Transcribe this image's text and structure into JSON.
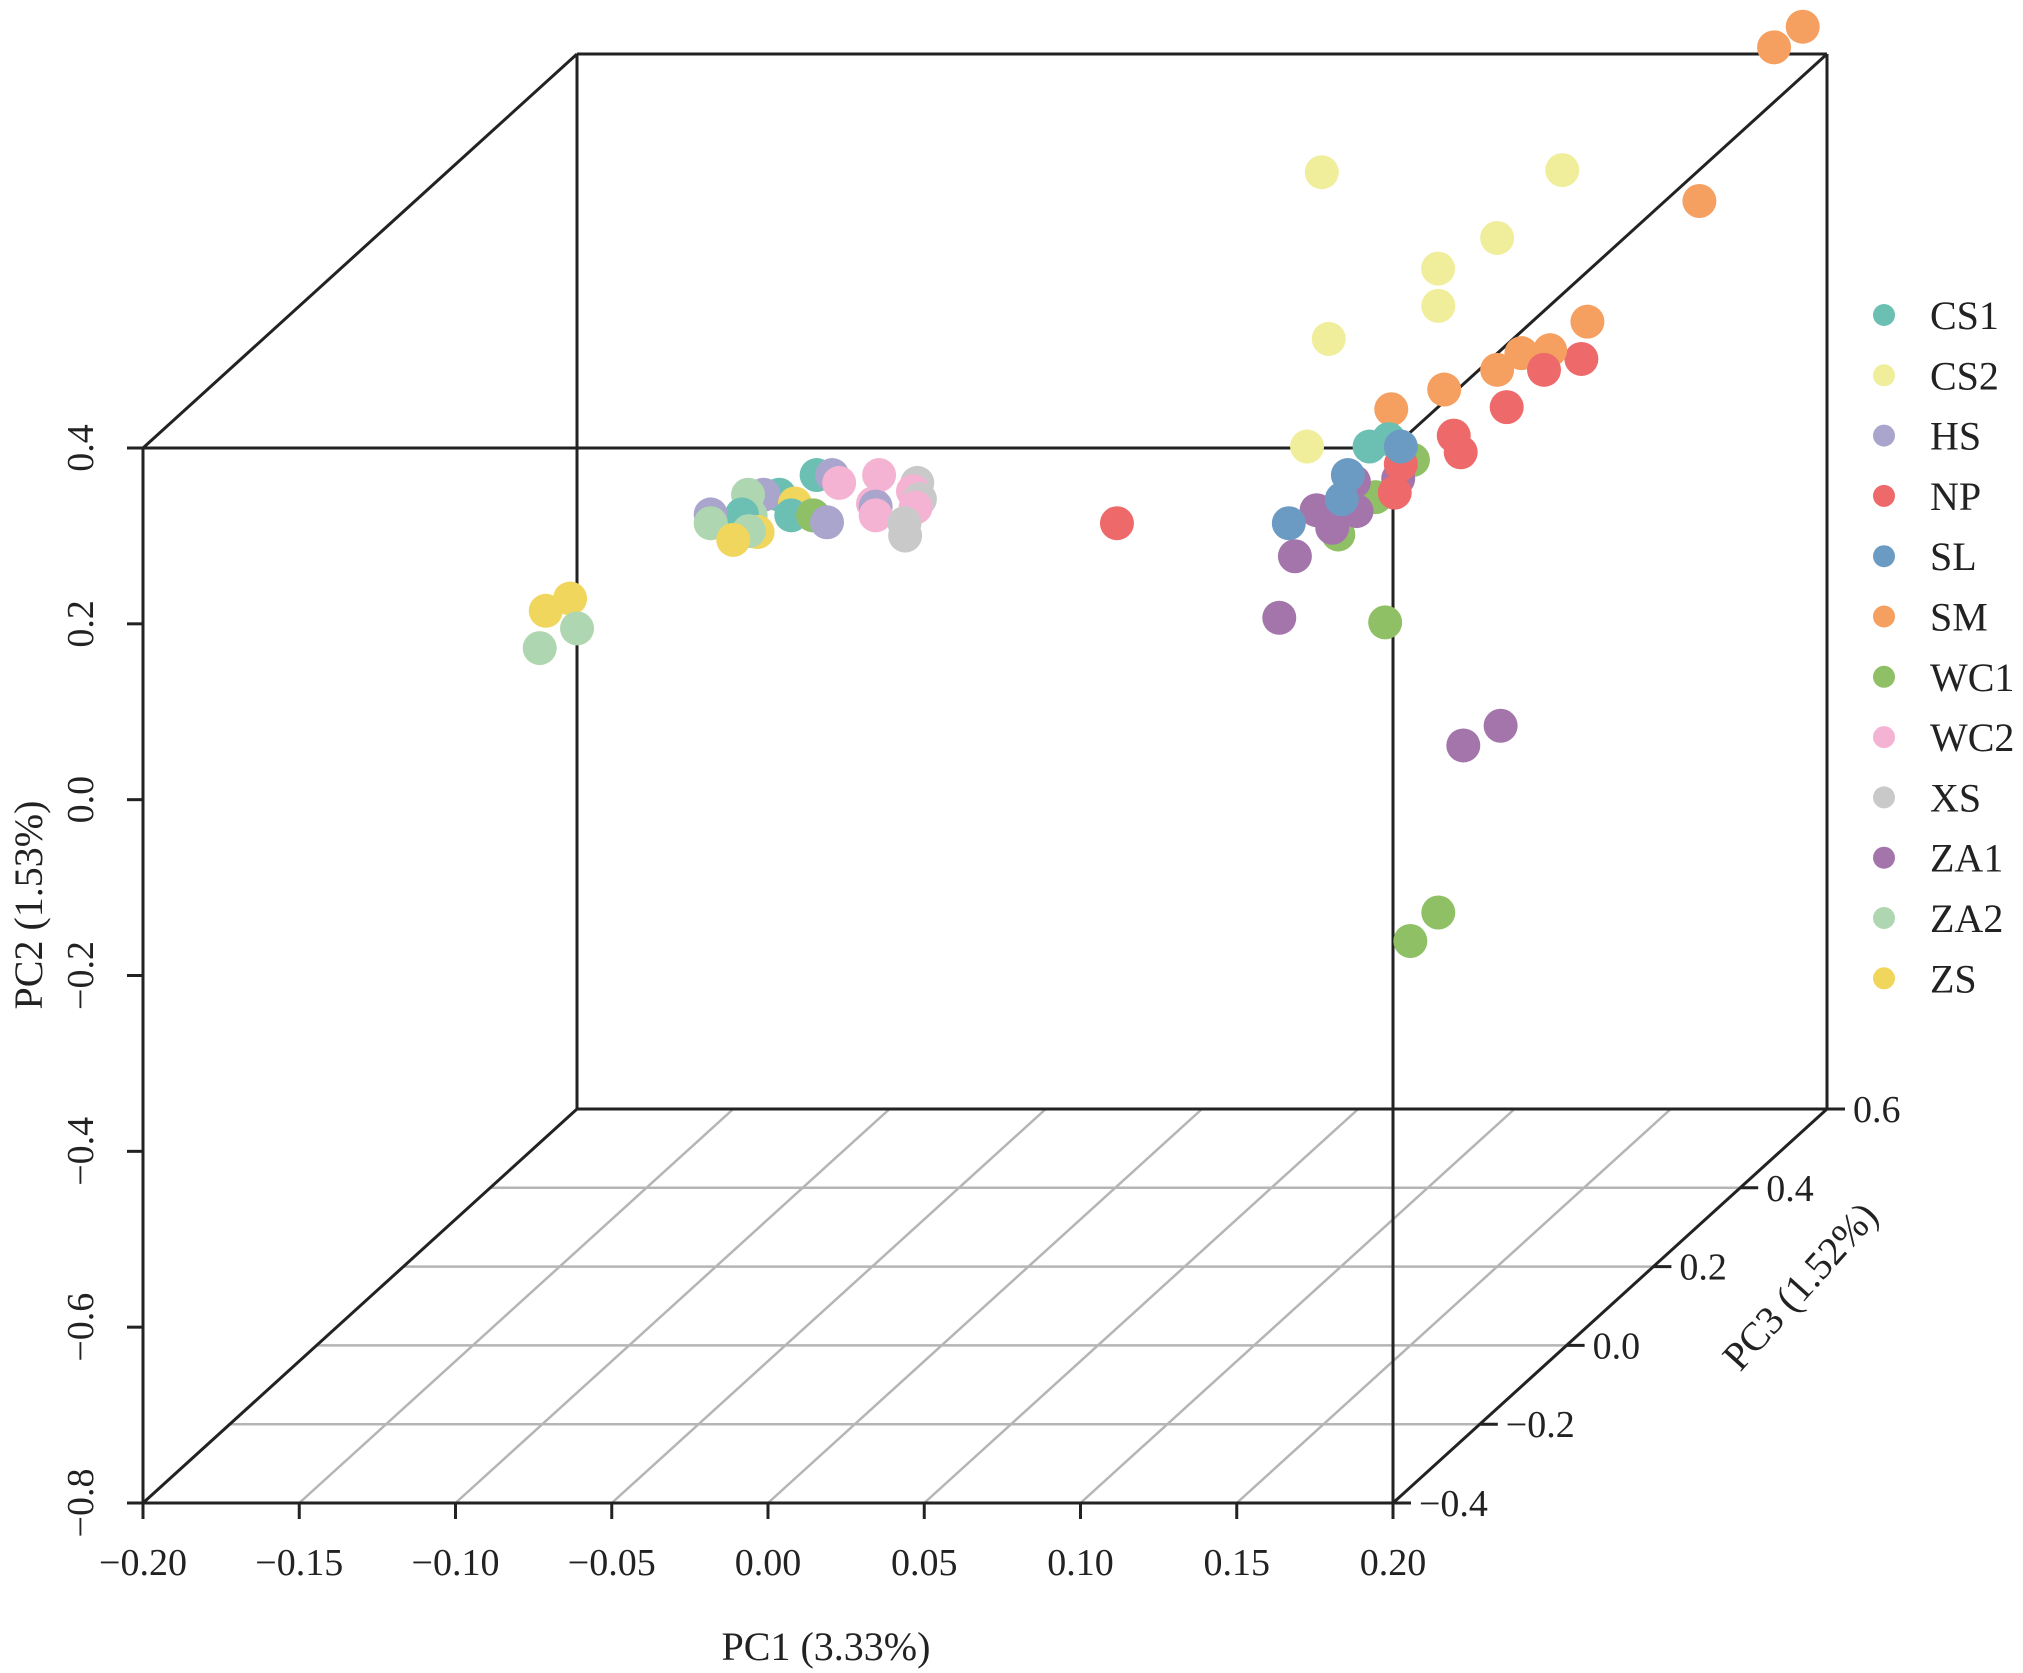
{
  "chart_data": {
    "type": "scatter",
    "projection": "3d-perspective",
    "xlabel": "PC1 (3.33%)",
    "ylabel": "PC2 (1.53%)",
    "zlabel": "PC3 (1.52%)",
    "xlim": [
      -0.2,
      0.2
    ],
    "ylim": [
      -0.8,
      0.4
    ],
    "zlim": [
      -0.4,
      0.6
    ],
    "xticks": [
      "−0.20",
      "−0.15",
      "−0.10",
      "−0.05",
      "0.00",
      "0.05",
      "0.10",
      "0.15",
      "0.20"
    ],
    "yticks": [
      "−0.8",
      "−0.6",
      "−0.4",
      "−0.2",
      "0.0",
      "0.2",
      "0.4"
    ],
    "zticks": [
      "−0.4",
      "−0.2",
      "0.0",
      "0.2",
      "0.4",
      "0.6"
    ],
    "grid": true,
    "legend_position": "right",
    "series": [
      {
        "name": "CS1",
        "color": "#6cc0b3",
        "points": [
          [
            -0.05,
            0.19,
            -0.1
          ],
          [
            -0.045,
            0.19,
            -0.05
          ],
          [
            -0.04,
            0.19,
            0.0
          ],
          [
            -0.037,
            0.18,
            -0.08
          ],
          [
            0.13,
            0.2,
            0.05
          ],
          [
            0.132,
            0.195,
            0.08
          ]
        ]
      },
      {
        "name": "CS2",
        "color": "#f0ee9a",
        "points": [
          [
            0.08,
            0.4,
            0.3
          ],
          [
            0.145,
            0.38,
            0.1
          ],
          [
            0.15,
            0.37,
            0.2
          ],
          [
            0.15,
            0.38,
            0.35
          ],
          [
            0.152,
            0.36,
            0.05
          ],
          [
            0.11,
            0.3,
            0.1
          ],
          [
            0.11,
            0.2,
            0.05
          ],
          [
            -0.06,
            0.18,
            -0.1
          ]
        ]
      },
      {
        "name": "HS",
        "color": "#a9a5cd",
        "points": [
          [
            -0.06,
            0.19,
            -0.1
          ],
          [
            -0.05,
            0.19,
            -0.05
          ],
          [
            -0.035,
            0.19,
            0.0
          ],
          [
            -0.03,
            0.18,
            -0.08
          ],
          [
            -0.02,
            0.19,
            -0.12
          ],
          [
            -0.01,
            0.19,
            -0.08
          ]
        ]
      },
      {
        "name": "NP",
        "color": "#ee6a6a",
        "points": [
          [
            0.07,
            0.18,
            -0.1
          ],
          [
            0.14,
            0.18,
            0.05
          ],
          [
            0.15,
            0.19,
            0.1
          ],
          [
            0.16,
            0.2,
            0.15
          ],
          [
            0.155,
            0.18,
            0.08
          ],
          [
            0.145,
            0.17,
            0.0
          ],
          [
            0.165,
            0.22,
            0.2
          ],
          [
            0.17,
            0.21,
            0.25
          ]
        ]
      },
      {
        "name": "SL",
        "color": "#6b9bc3",
        "points": [
          [
            0.125,
            0.18,
            -0.1
          ],
          [
            0.13,
            0.19,
            0.0
          ],
          [
            0.14,
            0.2,
            0.05
          ],
          [
            0.135,
            0.185,
            -0.05
          ]
        ]
      },
      {
        "name": "SM",
        "color": "#f5a060",
        "points": [
          [
            0.19,
            0.43,
            0.55
          ],
          [
            0.195,
            0.44,
            0.58
          ],
          [
            0.18,
            0.3,
            0.45
          ],
          [
            0.13,
            0.22,
            0.1
          ],
          [
            0.14,
            0.22,
            0.15
          ],
          [
            0.15,
            0.22,
            0.2
          ],
          [
            0.155,
            0.23,
            0.22
          ],
          [
            0.16,
            0.22,
            0.25
          ],
          [
            0.165,
            0.23,
            0.3
          ]
        ]
      },
      {
        "name": "WC1",
        "color": "#8fc065",
        "points": [
          [
            -0.03,
            0.18,
            -0.08
          ],
          [
            0.12,
            0.1,
            0.05
          ],
          [
            0.125,
            0.12,
            0.1
          ],
          [
            0.13,
            0.14,
            0.15
          ],
          [
            0.135,
            0.0,
            0.05
          ],
          [
            0.15,
            -0.34,
            0.0
          ],
          [
            0.152,
            -0.33,
            0.05
          ]
        ]
      },
      {
        "name": "WC2",
        "color": "#f4b3d3",
        "points": [
          [
            -0.03,
            0.19,
            -0.02
          ],
          [
            -0.02,
            0.19,
            0.0
          ],
          [
            -0.015,
            0.18,
            -0.05
          ],
          [
            -0.01,
            0.18,
            -0.08
          ],
          [
            -0.005,
            0.185,
            -0.03
          ],
          [
            0.0,
            0.18,
            -0.06
          ]
        ]
      },
      {
        "name": "XS",
        "color": "#c9c9c9",
        "points": [
          [
            -0.005,
            0.19,
            -0.02
          ],
          [
            0.0,
            0.185,
            -0.05
          ],
          [
            0.005,
            0.175,
            -0.12
          ],
          [
            0.002,
            0.18,
            -0.1
          ]
        ]
      },
      {
        "name": "ZA1",
        "color": "#a475ab",
        "points": [
          [
            0.12,
            0.15,
            0.0
          ],
          [
            0.125,
            0.16,
            0.05
          ],
          [
            0.13,
            0.14,
            0.02
          ],
          [
            0.135,
            0.15,
            0.08
          ],
          [
            0.12,
            0.12,
            -0.05
          ],
          [
            0.125,
            0.13,
            0.0
          ],
          [
            0.115,
            0.05,
            -0.05
          ],
          [
            0.16,
            -0.14,
            0.05
          ],
          [
            0.165,
            -0.14,
            0.1
          ]
        ]
      },
      {
        "name": "ZA2",
        "color": "#aed6b0",
        "points": [
          [
            -0.08,
            0.15,
            -0.35
          ],
          [
            -0.075,
            0.15,
            -0.3
          ],
          [
            -0.06,
            0.18,
            -0.1
          ],
          [
            -0.055,
            0.19,
            -0.05
          ],
          [
            -0.05,
            0.18,
            -0.08
          ],
          [
            -0.045,
            0.18,
            -0.12
          ]
        ]
      },
      {
        "name": "ZS",
        "color": "#f1d65e",
        "points": [
          [
            -0.085,
            0.17,
            -0.3
          ],
          [
            -0.08,
            0.175,
            -0.28
          ],
          [
            -0.05,
            0.17,
            -0.12
          ],
          [
            -0.045,
            0.17,
            -0.1
          ],
          [
            -0.04,
            0.18,
            -0.05
          ]
        ]
      }
    ]
  }
}
